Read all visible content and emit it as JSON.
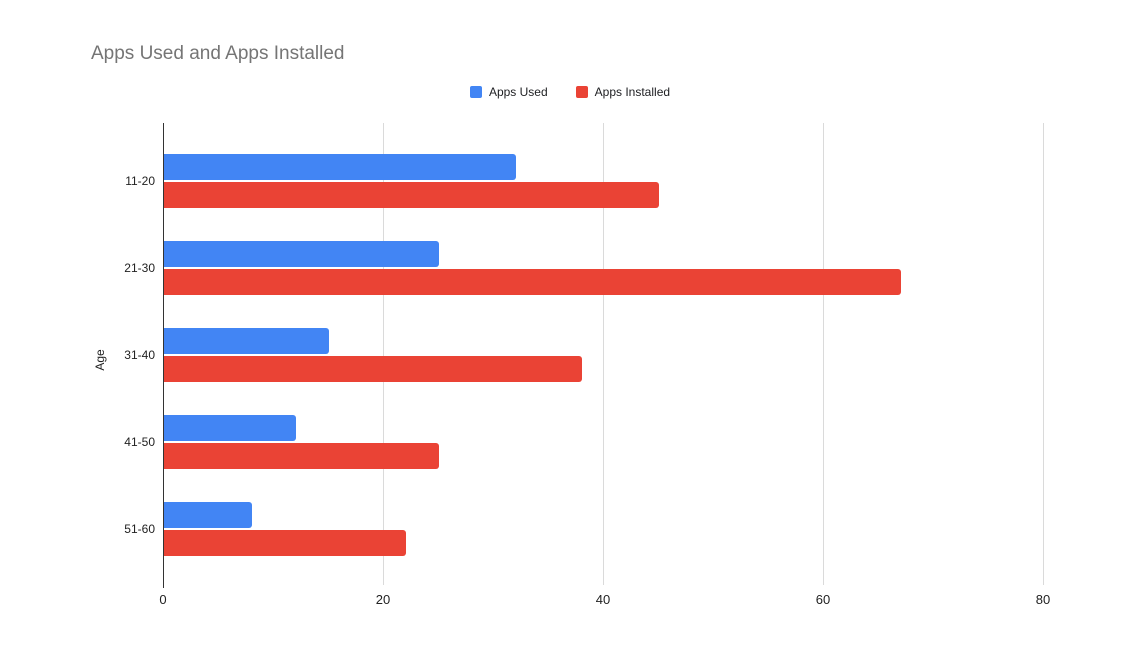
{
  "chart_data": {
    "type": "bar",
    "orientation": "horizontal",
    "title": "Apps Used and Apps Installed",
    "xlabel": "",
    "ylabel": "Age",
    "categories": [
      "11-20",
      "21-30",
      "31-40",
      "41-50",
      "51-60"
    ],
    "series": [
      {
        "name": "Apps Used",
        "color": "#4285F4",
        "values": [
          32,
          25,
          15,
          12,
          8
        ]
      },
      {
        "name": "Apps Installed",
        "color": "#EA4335",
        "values": [
          45,
          67,
          38,
          25,
          22
        ]
      }
    ],
    "x_ticks": [
      0,
      20,
      40,
      60,
      80
    ],
    "xlim": [
      0,
      85
    ],
    "grid": true,
    "legend_position": "top-center"
  },
  "styles": {
    "background": "#ffffff",
    "title_color": "#757575",
    "axis_text_color": "#222222",
    "gridline_color": "#dadada",
    "axis_line_color": "#333333"
  }
}
